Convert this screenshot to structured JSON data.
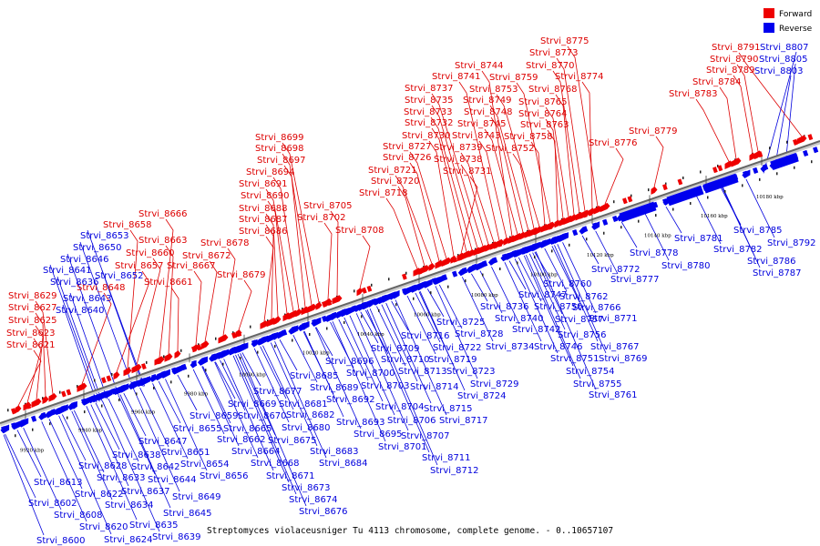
{
  "legend": {
    "forward_label": "Forward",
    "reverse_label": "Reverse",
    "forward_color": "#ee0000",
    "reverse_color": "#0000ee"
  },
  "caption": "Streptomyces violaceusniger Tu 4113 chromosome, complete genome. - 0..10657107",
  "axis": {
    "tick_labels": [
      "9920 kbp",
      "9940 kbp",
      "9960 kbp",
      "9980 kbp",
      "10000 kbp",
      "10020 kbp",
      "10040 kbp",
      "10060 kbp",
      "10080 kbp",
      "10100 kbp",
      "10120 kbp",
      "10140 kbp",
      "10160 kbp",
      "10180 kbp"
    ]
  },
  "forward_genes": [
    "Strvi_8621",
    "Strvi_8623",
    "Strvi_8625",
    "Strvi_8627",
    "Strvi_8629",
    "Strvi_8648",
    "Strvi_8657",
    "Strvi_8658",
    "Strvi_8660",
    "Strvi_8661",
    "Strvi_8663",
    "Strvi_8666",
    "Strvi_8667",
    "Strvi_8672",
    "Strvi_8678",
    "Strvi_8679",
    "Strvi_8686",
    "Strvi_8687",
    "Strvi_8688",
    "Strvi_8690",
    "Strvi_8691",
    "Strvi_8694",
    "Strvi_8697",
    "Strvi_8698",
    "Strvi_8699",
    "Strvi_8702",
    "Strvi_8705",
    "Strvi_8708",
    "Strvi_8718",
    "Strvi_8720",
    "Strvi_8721",
    "Strvi_8726",
    "Strvi_8727",
    "Strvi_8730",
    "Strvi_8731",
    "Strvi_8732",
    "Strvi_8733",
    "Strvi_8735",
    "Strvi_8737",
    "Strvi_8738",
    "Strvi_8739",
    "Strvi_8741",
    "Strvi_8743",
    "Strvi_8744",
    "Strvi_8745",
    "Strvi_8748",
    "Strvi_8749",
    "Strvi_8752",
    "Strvi_8753",
    "Strvi_8758",
    "Strvi_8759",
    "Strvi_8763",
    "Strvi_8764",
    "Strvi_8765",
    "Strvi_8768",
    "Strvi_8770",
    "Strvi_8773",
    "Strvi_8774",
    "Strvi_8775",
    "Strvi_8776",
    "Strvi_8779",
    "Strvi_8783",
    "Strvi_8784",
    "Strvi_8789",
    "Strvi_8790",
    "Strvi_8791"
  ],
  "reverse_genes": [
    "Strvi_8600",
    "Strvi_8602",
    "Strvi_8608",
    "Strvi_8613",
    "Strvi_8620",
    "Strvi_8622",
    "Strvi_8624",
    "Strvi_8628",
    "Strvi_8633",
    "Strvi_8634",
    "Strvi_8635",
    "Strvi_8636",
    "Strvi_8637",
    "Strvi_8638",
    "Strvi_8639",
    "Strvi_8640",
    "Strvi_8641",
    "Strvi_8642",
    "Strvi_8643",
    "Strvi_8644",
    "Strvi_8645",
    "Strvi_8646",
    "Strvi_8647",
    "Strvi_8649",
    "Strvi_8650",
    "Strvi_8651",
    "Strvi_8652",
    "Strvi_8653",
    "Strvi_8654",
    "Strvi_8655",
    "Strvi_8656",
    "Strvi_8659",
    "Strvi_8662",
    "Strvi_8664",
    "Strvi_8665",
    "Strvi_8668",
    "Strvi_8669",
    "Strvi_8670",
    "Strvi_8671",
    "Strvi_8673",
    "Strvi_8674",
    "Strvi_8675",
    "Strvi_8676",
    "Strvi_8677",
    "Strvi_8680",
    "Strvi_8681",
    "Strvi_8682",
    "Strvi_8683",
    "Strvi_8684",
    "Strvi_8685",
    "Strvi_8689",
    "Strvi_8692",
    "Strvi_8693",
    "Strvi_8695",
    "Strvi_8696",
    "Strvi_8700",
    "Strvi_8701",
    "Strvi_8703",
    "Strvi_8704",
    "Strvi_8706",
    "Strvi_8707",
    "Strvi_8709",
    "Strvi_8710",
    "Strvi_8711",
    "Strvi_8712",
    "Strvi_8713",
    "Strvi_8714",
    "Strvi_8715",
    "Strvi_8716",
    "Strvi_8717",
    "Strvi_8719",
    "Strvi_8722",
    "Strvi_8723",
    "Strvi_8724",
    "Strvi_8725",
    "Strvi_8728",
    "Strvi_8729",
    "Strvi_8734",
    "Strvi_8736",
    "Strvi_8740",
    "Strvi_8742",
    "Strvi_8746",
    "Strvi_8747",
    "Strvi_8750",
    "Strvi_8751",
    "Strvi_8754",
    "Strvi_8755",
    "Strvi_8756",
    "Strvi_8757",
    "Strvi_8760",
    "Strvi_8761",
    "Strvi_8762",
    "Strvi_8766",
    "Strvi_8767",
    "Strvi_8769",
    "Strvi_8771",
    "Strvi_8772",
    "Strvi_8777",
    "Strvi_8778",
    "Strvi_8780",
    "Strvi_8781",
    "Strvi_8782",
    "Strvi_8785",
    "Strvi_8786",
    "Strvi_8787",
    "Strvi_8792",
    "Strvi_8803",
    "Strvi_8805",
    "Strvi_8807"
  ]
}
